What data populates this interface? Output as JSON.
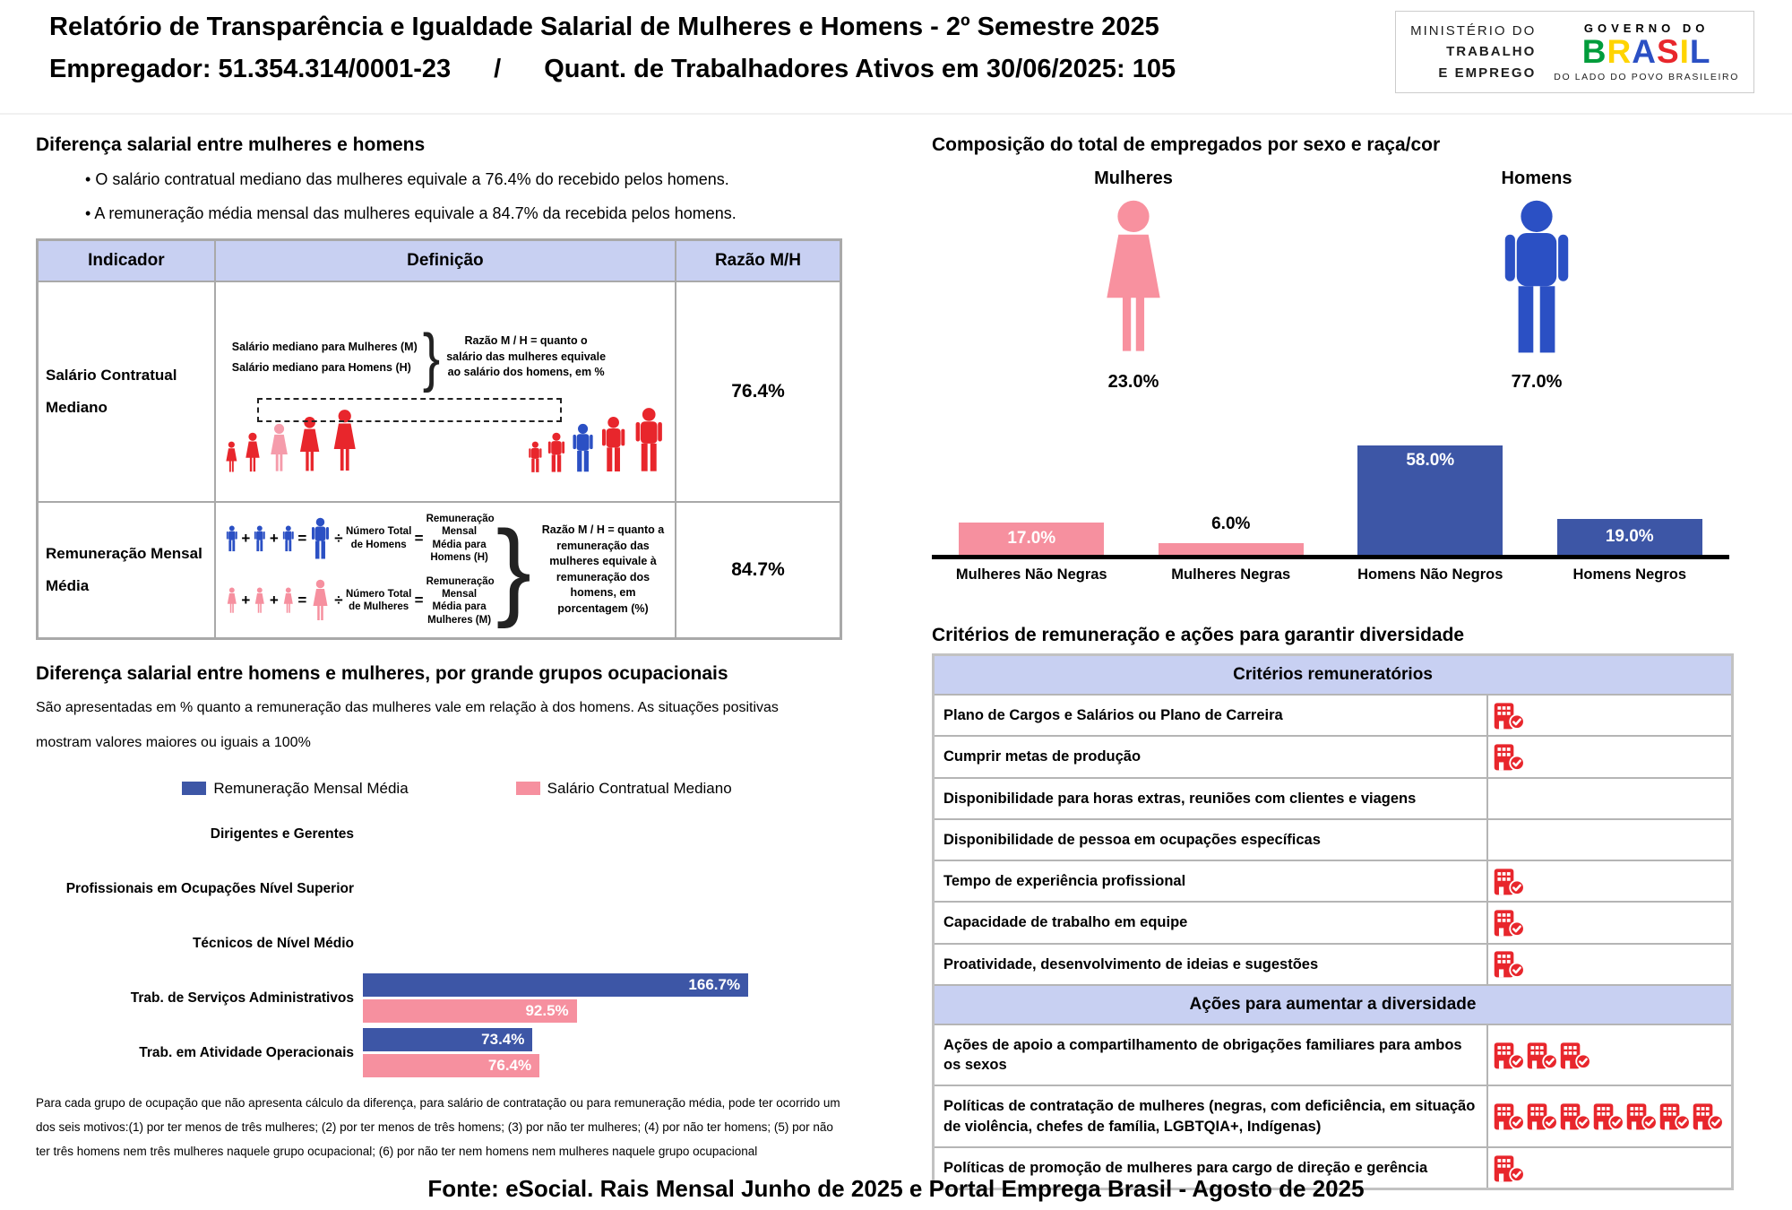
{
  "page": {
    "title": "Relatório de Transparência e Igualdade Salarial de Mulheres e Homens - 2º Semestre 2025",
    "subtitle_employer": "Empregador: 51.354.314/0001-23",
    "subtitle_separator": "/",
    "subtitle_workers": "Quant. de Trabalhadores Ativos em 30/06/2025: 105",
    "footer": "Fonte: eSocial. Rais Mensal Junho de 2025 e Portal Emprega Brasil - Agosto de 2025"
  },
  "logo": {
    "ministry_1": "MINISTÉRIO DO",
    "ministry_2": "TRABALHO",
    "ministry_3": "E EMPREGO",
    "gov_top": "GOVERNO DO",
    "gov_name": "BRASIL",
    "gov_tagline": "DO LADO DO POVO BRASILEIRO"
  },
  "colors": {
    "bar_blue": "#3d56a6",
    "bar_pink": "#f6909f",
    "figure_red": "#e8262c",
    "figure_pink": "#f59cab",
    "figure_blue": "#2b50c4",
    "header_lavender": "#c8d0f2",
    "icon_red": "#e8262c"
  },
  "salary_diff": {
    "title": "Diferença salarial entre mulheres e homens",
    "bullets": [
      "O salário contratual mediano das mulheres equivale a 76.4% do recebido pelos homens.",
      "A remuneração média mensal das mulheres equivale a 84.7% da recebida pelos homens."
    ],
    "table": {
      "headers": [
        "Indicador",
        "Definição",
        "Razão M/H"
      ],
      "row_median": {
        "indicator": "Salário Contratual Mediano",
        "def_women": "Salário mediano para Mulheres (M)",
        "def_men": "Salário mediano para Homens (H)",
        "def_note": "Razão M / H = quanto o salário das mulheres equivale ao salário dos homens, em %",
        "ratio": "76.4%"
      },
      "row_mean": {
        "indicator_line1": "Remuneração Mensal",
        "indicator_line2": "Média",
        "men_divisor": "Número Total de Homens",
        "men_result": "Remuneração Mensal Média para Homens (H)",
        "women_divisor": "Número Total de Mulheres",
        "women_result": "Remuneração Mensal Média para Mulheres (M)",
        "symbols": {
          "plus": "+",
          "equals": "=",
          "divide": "÷"
        },
        "def_note": "Razão M / H = quanto a remuneração das mulheres equivale à remuneração dos homens, em porcentagem (%)",
        "ratio": "84.7%"
      }
    }
  },
  "occupational": {
    "title": "Diferença salarial entre homens e mulheres, por grande grupos ocupacionais",
    "subtitle_line1": "São apresentadas em % quanto a remuneração das mulheres vale em relação à dos homens. As situações positivas",
    "subtitle_line2": "mostram valores maiores ou iguais a 100%",
    "footnote": "Para cada grupo de ocupação que não apresenta cálculo da diferença, para salário de contratação ou para remuneração média, pode ter ocorrido um dos seis motivos:(1) por ter menos de três mulheres; (2) por ter menos de três homens; (3) por não ter mulheres; (4) por não ter homens; (5) por não ter três homens nem três mulheres naquele grupo ocupacional; (6) por não ter nem homens nem mulheres naquele grupo ocupacional"
  },
  "composition": {
    "title": "Composição do total de empregados por sexo e raça/cor",
    "women_label": "Mulheres",
    "men_label": "Homens",
    "women_pct": "23.0%",
    "men_pct": "77.0%"
  },
  "criteria": {
    "title": "Critérios de remuneração e ações para garantir diversidade",
    "sections": [
      {
        "header": "Critérios remuneratórios",
        "rows": [
          {
            "label": "Plano de Cargos e Salários ou Plano de Carreira",
            "icons": 1
          },
          {
            "label": "Cumprir metas de produção",
            "icons": 1
          },
          {
            "label": "Disponibilidade para horas extras, reuniões com clientes e viagens",
            "icons": 0
          },
          {
            "label": "Disponibilidade de pessoa em ocupações específicas",
            "icons": 0
          },
          {
            "label": "Tempo de experiência profissional",
            "icons": 1
          },
          {
            "label": "Capacidade de trabalho em equipe",
            "icons": 1
          },
          {
            "label": "Proatividade, desenvolvimento de ideias e sugestões",
            "icons": 1
          }
        ]
      },
      {
        "header": "Ações para aumentar a diversidade",
        "rows": [
          {
            "label": "Ações de apoio a compartilhamento de obrigações familiares para ambos os sexos",
            "icons": 3
          },
          {
            "label": "Políticas de contratação de mulheres (negras, com deficiência, em situação de violência, chefes de família, LGBTQIA+, Indígenas)",
            "icons": 7
          },
          {
            "label": "Políticas de promoção de mulheres para cargo de direção e gerência",
            "icons": 1
          }
        ]
      }
    ]
  },
  "chart_data": [
    {
      "type": "bar",
      "title": "Composição do total de empregados por sexo e raça/cor",
      "categories": [
        "Mulheres Não Negras",
        "Mulheres Negras",
        "Homens Não Negros",
        "Homens Negros"
      ],
      "values": [
        17.0,
        6.0,
        58.0,
        19.0
      ],
      "value_labels": [
        "17.0%",
        "6.0%",
        "58.0%",
        "19.0%"
      ],
      "bar_colors": [
        "#f6909f",
        "#f6909f",
        "#3d56a6",
        "#3d56a6"
      ],
      "gender_totals": {
        "Mulheres": 23.0,
        "Homens": 77.0
      },
      "ylim": [
        0,
        60
      ],
      "grid": false,
      "legend_position": "none"
    },
    {
      "type": "bar",
      "orientation": "horizontal",
      "title": "Diferença salarial entre homens e mulheres, por grande grupos ocupacionais",
      "categories": [
        "Dirigentes e Gerentes",
        "Profissionais em Ocupações Nível Superior",
        "Técnicos de Nível Médio",
        "Trab. de Serviços Administrativos",
        "Trab. em Atividade Operacionais"
      ],
      "series": [
        {
          "name": "Remuneração Mensal Média",
          "color": "#3d56a6",
          "values": [
            null,
            null,
            null,
            166.7,
            73.4
          ]
        },
        {
          "name": "Salário Contratual Mediano",
          "color": "#f6909f",
          "values": [
            null,
            null,
            null,
            92.5,
            76.4
          ]
        }
      ],
      "xlim": [
        0,
        180
      ],
      "grid": false,
      "legend_position": "top"
    }
  ]
}
